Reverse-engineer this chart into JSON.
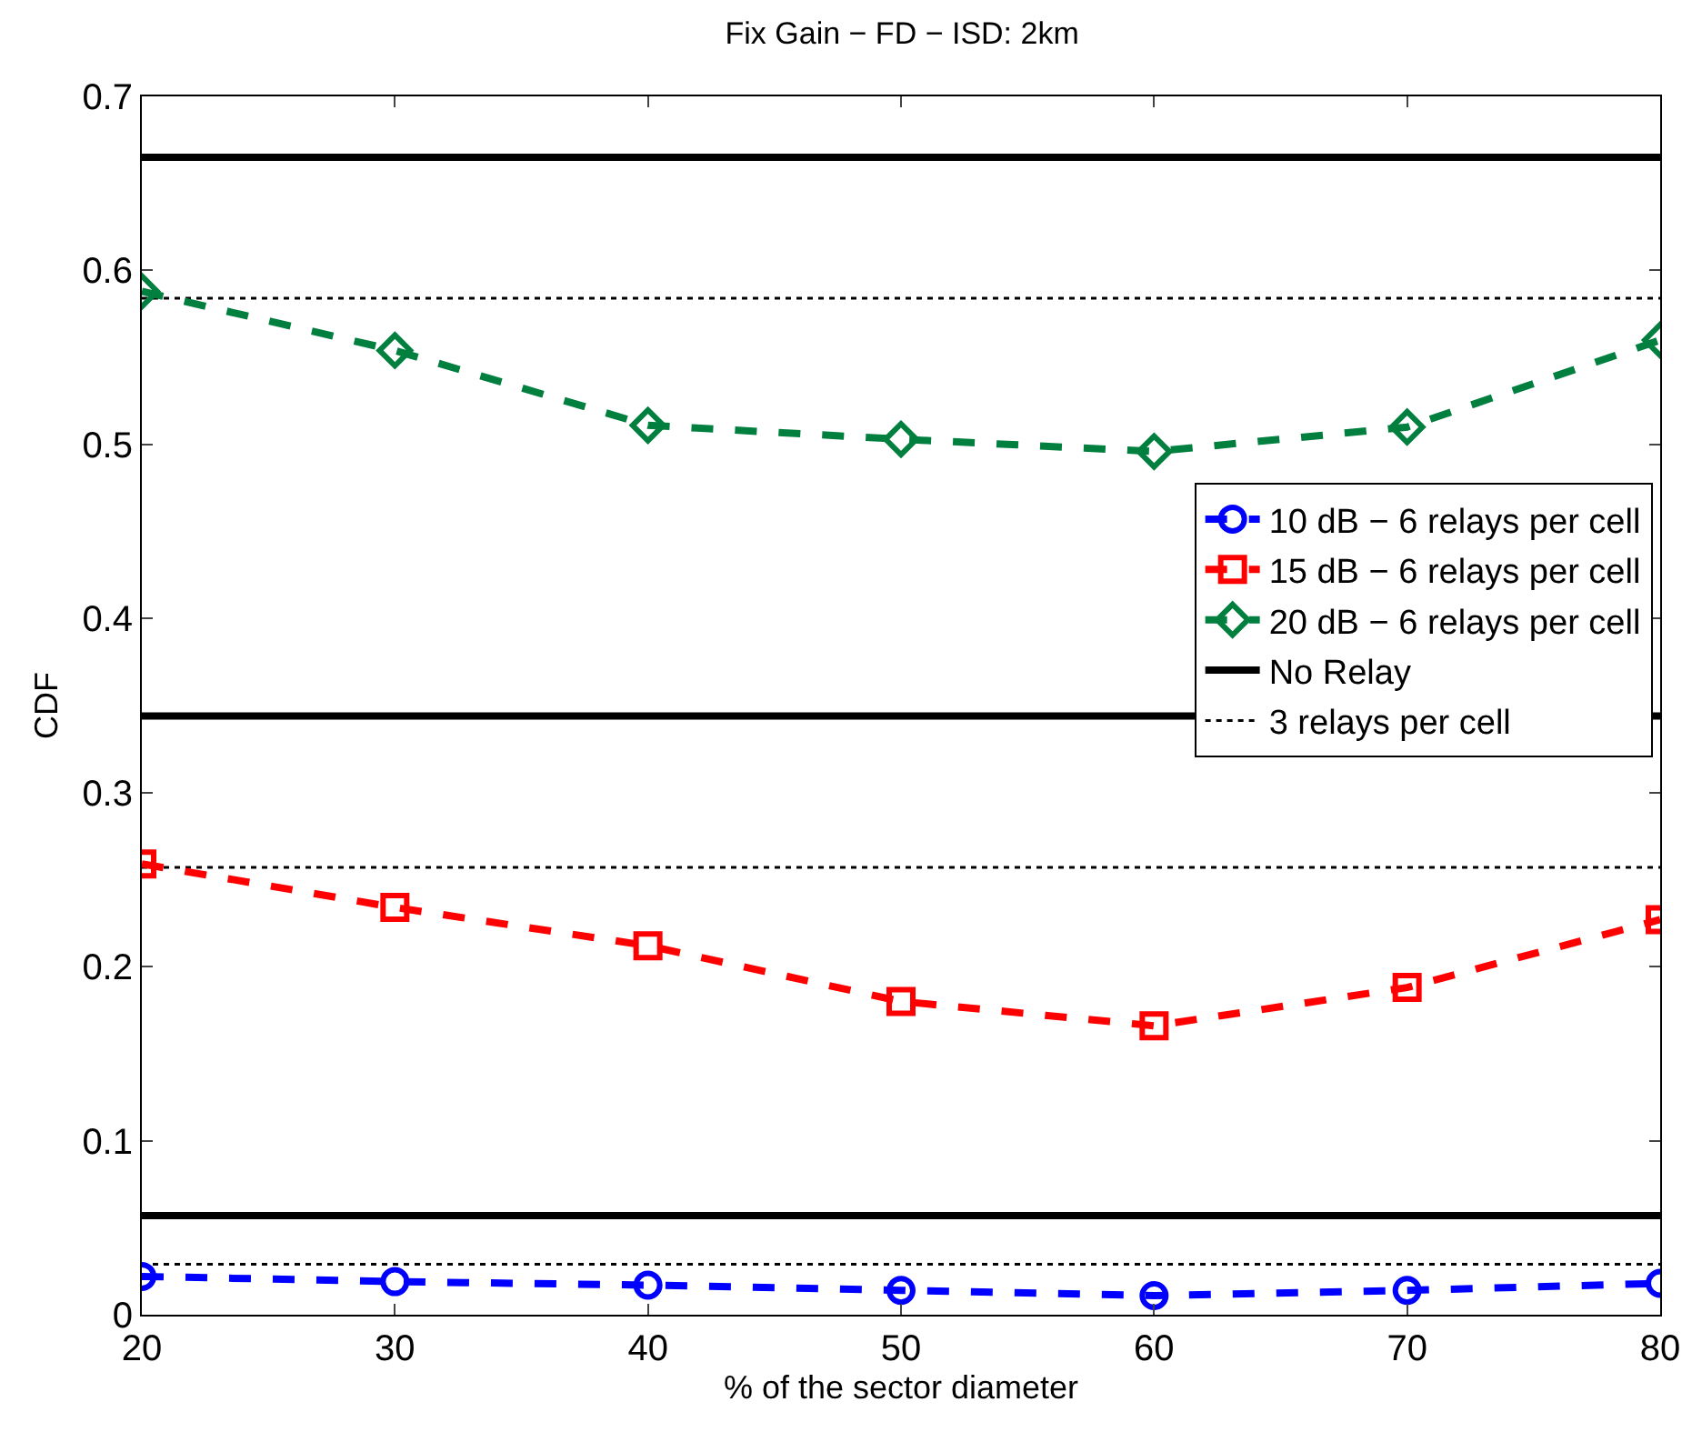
{
  "chart_data": {
    "type": "line",
    "title": "Fix Gain − FD − ISD: 2km",
    "xlabel": "% of the sector diameter",
    "ylabel": "CDF",
    "x": [
      20,
      30,
      40,
      50,
      60,
      70,
      80
    ],
    "series": [
      {
        "name": "10 dB − 6 relays per cell",
        "color": "#0000ff",
        "marker": "circle",
        "line_style": "dashed",
        "values": [
          0.022,
          0.019,
          0.017,
          0.014,
          0.011,
          0.014,
          0.018
        ]
      },
      {
        "name": "15 dB − 6 relays per cell",
        "color": "#ff0000",
        "marker": "square",
        "line_style": "dashed",
        "values": [
          0.259,
          0.234,
          0.212,
          0.18,
          0.166,
          0.188,
          0.227
        ]
      },
      {
        "name": "20 dB − 6 relays per cell",
        "color": "#007f3f",
        "marker": "diamond",
        "line_style": "dashed",
        "values": [
          0.588,
          0.554,
          0.511,
          0.503,
          0.496,
          0.51,
          0.56
        ]
      }
    ],
    "ref_lines": [
      {
        "axis": "y",
        "value": 0.665,
        "label": "No Relay",
        "color": "#000000",
        "line_style": "solid"
      },
      {
        "axis": "y",
        "value": 0.344,
        "color": "#000000",
        "line_style": "solid"
      },
      {
        "axis": "y",
        "value": 0.057,
        "color": "#000000",
        "line_style": "solid"
      },
      {
        "axis": "y",
        "value": 0.584,
        "label": "3 relays per cell",
        "color": "#000000",
        "line_style": "dotted"
      },
      {
        "axis": "y",
        "value": 0.257,
        "color": "#000000",
        "line_style": "dotted"
      },
      {
        "axis": "y",
        "value": 0.029,
        "color": "#000000",
        "line_style": "dotted"
      }
    ],
    "xlim": [
      20,
      80
    ],
    "xticks": [
      20,
      30,
      40,
      50,
      60,
      70,
      80
    ],
    "ylim": [
      0,
      0.7
    ],
    "yticks": [
      0,
      0.1,
      0.2,
      0.3,
      0.4,
      0.5,
      0.6,
      0.7
    ],
    "grid": false,
    "legend": "right"
  }
}
